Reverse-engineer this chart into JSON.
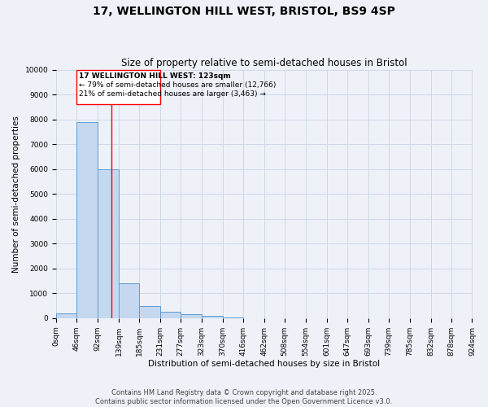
{
  "title": "17, WELLINGTON HILL WEST, BRISTOL, BS9 4SP",
  "subtitle": "Size of property relative to semi-detached houses in Bristol",
  "xlabel": "Distribution of semi-detached houses by size in Bristol",
  "ylabel": "Number of semi-detached properties",
  "bar_values": [
    200,
    7900,
    6000,
    1400,
    500,
    250,
    150,
    80,
    30,
    5,
    2,
    1,
    0,
    0,
    0,
    0,
    0,
    0,
    0,
    0
  ],
  "bin_edges": [
    0,
    46,
    92,
    139,
    185,
    231,
    277,
    323,
    370,
    416,
    462,
    508,
    554,
    601,
    647,
    693,
    739,
    785,
    832,
    878,
    924
  ],
  "xtick_labels": [
    "0sqm",
    "46sqm",
    "92sqm",
    "139sqm",
    "185sqm",
    "231sqm",
    "277sqm",
    "323sqm",
    "370sqm",
    "416sqm",
    "462sqm",
    "508sqm",
    "554sqm",
    "601sqm",
    "647sqm",
    "693sqm",
    "739sqm",
    "785sqm",
    "832sqm",
    "878sqm",
    "924sqm"
  ],
  "bar_color": "#c5d8f0",
  "bar_edge_color": "#5b9bd5",
  "grid_color": "#d0d8e8",
  "background_color": "#eef2f8",
  "red_line_x": 123,
  "property_size": "123sqm",
  "pct_smaller": 79,
  "num_smaller": 12766,
  "pct_larger": 21,
  "num_larger": 3463,
  "annotation_label": "17 WELLINGTON HILL WEST: 123sqm",
  "ylim": [
    0,
    10000
  ],
  "yticks": [
    0,
    1000,
    2000,
    3000,
    4000,
    5000,
    6000,
    7000,
    8000,
    9000,
    10000
  ],
  "footer_line1": "Contains HM Land Registry data © Crown copyright and database right 2025.",
  "footer_line2": "Contains public sector information licensed under the Open Government Licence v3.0.",
  "title_fontsize": 10,
  "subtitle_fontsize": 8.5,
  "axis_label_fontsize": 7.5,
  "tick_fontsize": 6.5,
  "annotation_fontsize": 6.5,
  "footer_fontsize": 6
}
